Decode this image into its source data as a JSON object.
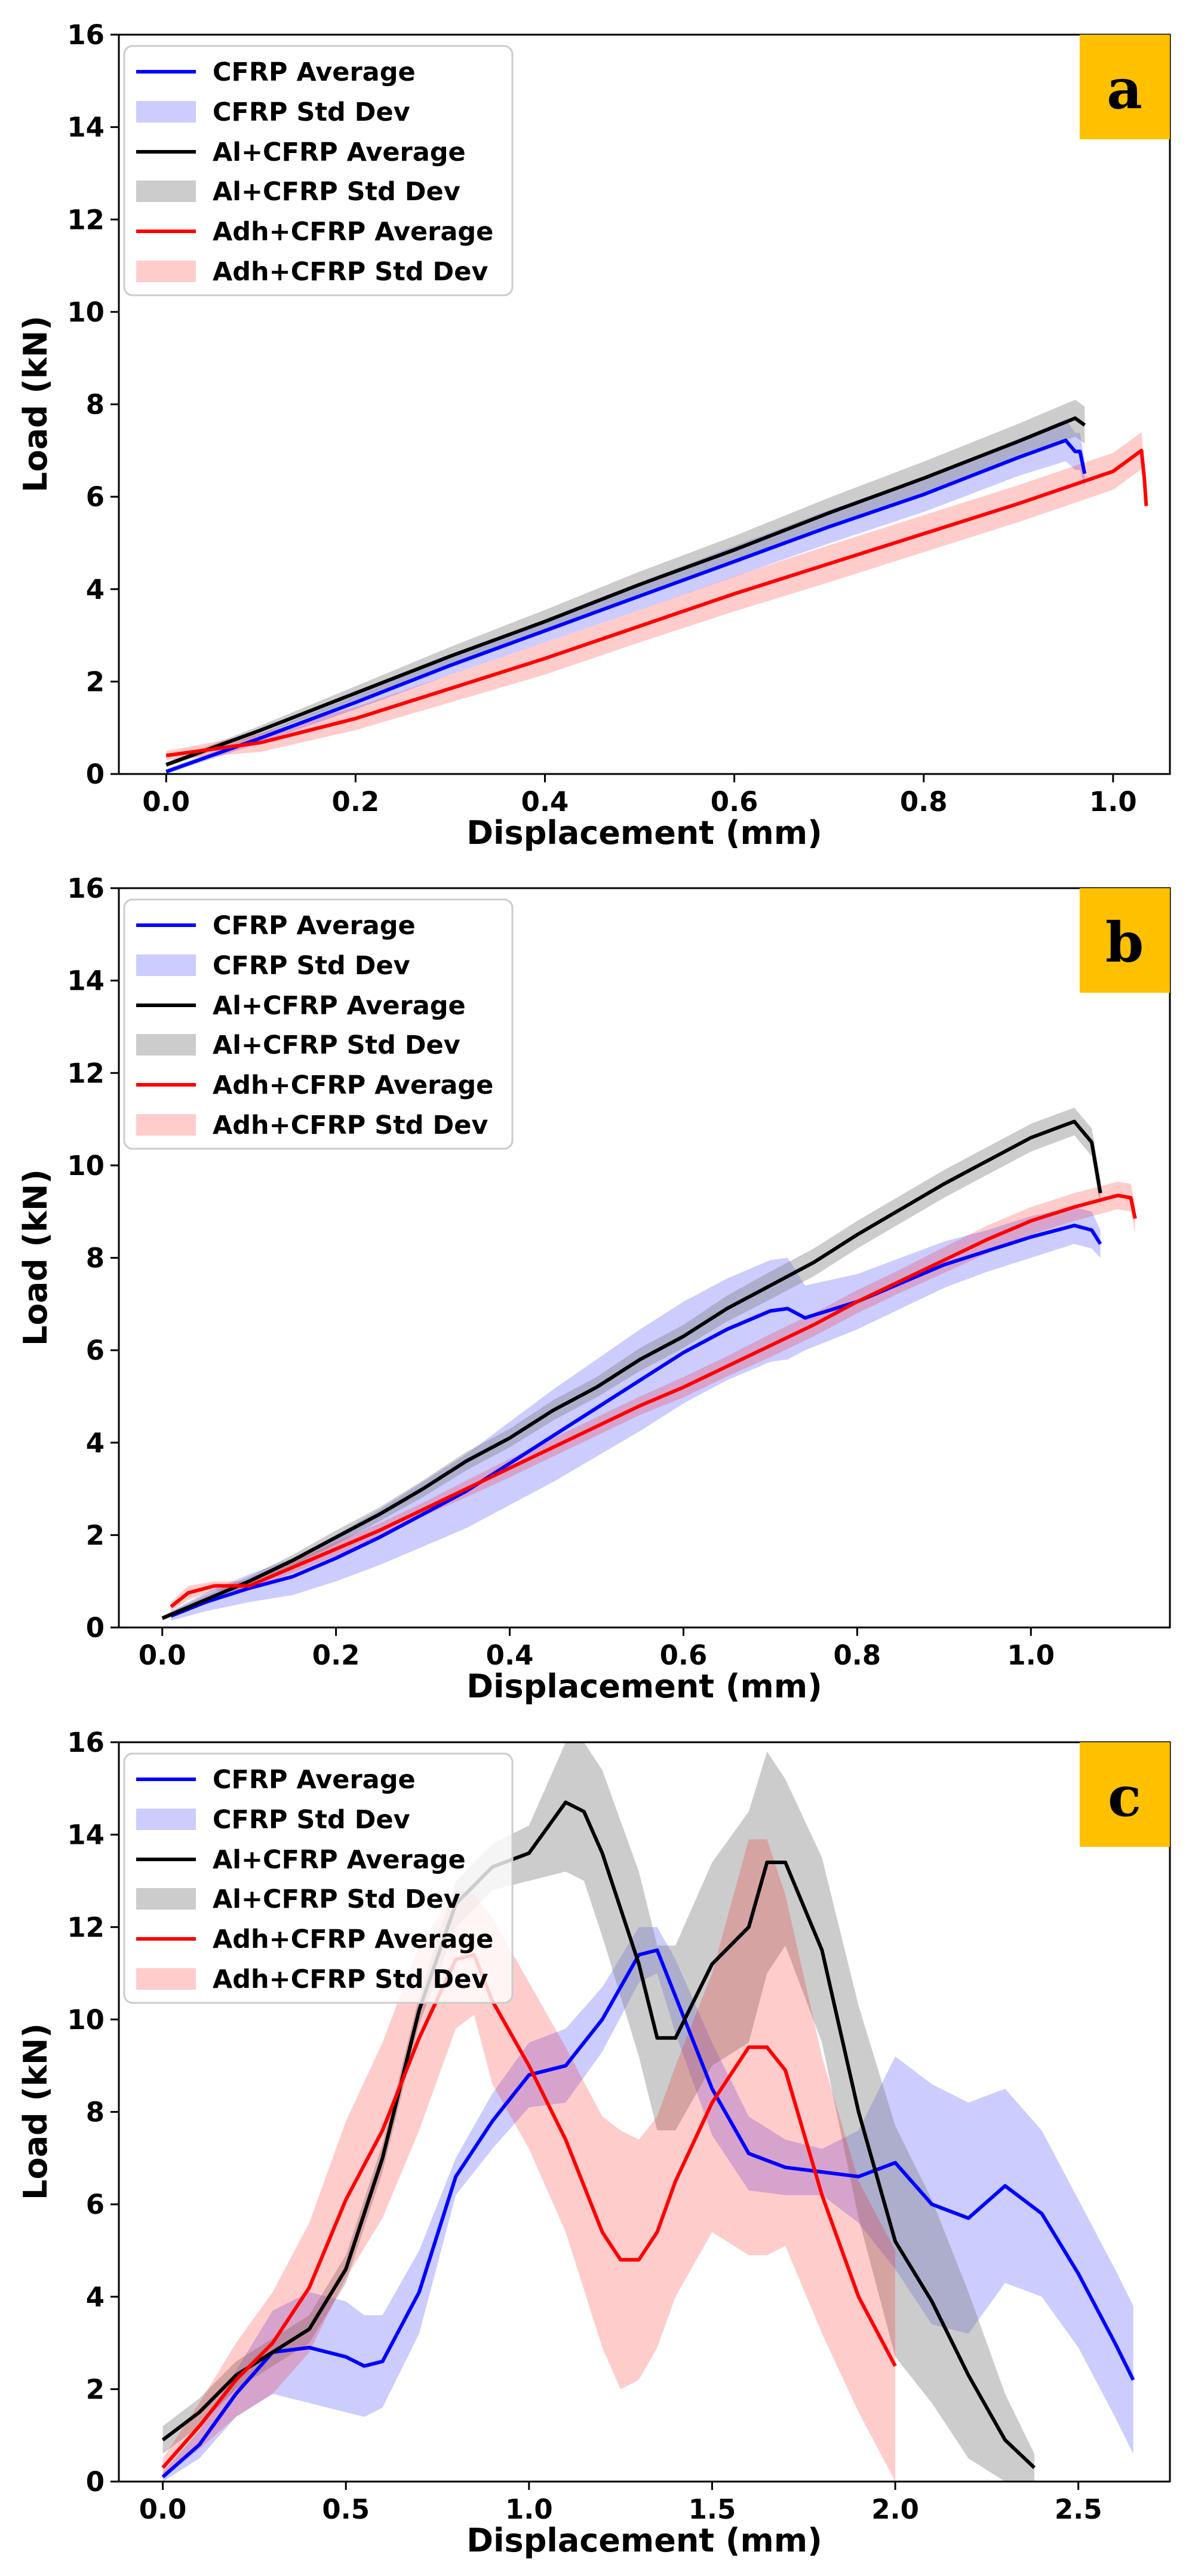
{
  "legend": [
    {
      "label": "CFRP Average",
      "kind": "line",
      "color": "#0000ff"
    },
    {
      "label": "CFRP Std Dev",
      "kind": "band",
      "color": "#0000ff"
    },
    {
      "label": "Al+CFRP Average",
      "kind": "line",
      "color": "#000000"
    },
    {
      "label": "Al+CFRP Std Dev",
      "kind": "band",
      "color": "#808080"
    },
    {
      "label": "Adh+CFRP Average",
      "kind": "line",
      "color": "#ff0000"
    },
    {
      "label": "Adh+CFRP Std Dev",
      "kind": "band",
      "color": "#ff0000"
    }
  ],
  "badge_color": "#ffc000",
  "chart_data": [
    {
      "panel": "a",
      "type": "line",
      "xlabel": "Displacement (mm)",
      "ylabel": "Load (kN)",
      "xlim": [
        -0.05,
        1.06
      ],
      "ylim": [
        0,
        16
      ],
      "xticks": [
        0.0,
        0.2,
        0.4,
        0.6,
        0.8,
        1.0
      ],
      "xtick_labels": [
        "0.0",
        "0.2",
        "0.4",
        "0.6",
        "0.8",
        "1.0"
      ],
      "yticks": [
        0,
        2,
        4,
        6,
        8,
        10,
        12,
        14,
        16
      ],
      "ytick_labels": [
        "0",
        "2",
        "4",
        "6",
        "8",
        "10",
        "12",
        "14",
        "16"
      ],
      "legend_position": "upper-left",
      "series": [
        {
          "name": "CFRP",
          "color": "#0000ff",
          "band_color": "#0000ff",
          "x": [
            0.0,
            0.1,
            0.2,
            0.3,
            0.4,
            0.5,
            0.6,
            0.7,
            0.8,
            0.9,
            0.95,
            0.96,
            0.965,
            0.97
          ],
          "y": [
            0.05,
            0.78,
            1.55,
            2.35,
            3.1,
            3.85,
            4.6,
            5.35,
            6.05,
            6.85,
            7.22,
            6.98,
            6.98,
            6.5
          ],
          "std": [
            0.05,
            0.1,
            0.15,
            0.2,
            0.25,
            0.3,
            0.33,
            0.36,
            0.38,
            0.4,
            0.45,
            0.4,
            0.4,
            0.3
          ]
        },
        {
          "name": "Al+CFRP",
          "color": "#000000",
          "band_color": "#808080",
          "x": [
            0.0,
            0.1,
            0.2,
            0.3,
            0.4,
            0.5,
            0.6,
            0.7,
            0.8,
            0.9,
            0.96,
            0.97
          ],
          "y": [
            0.2,
            0.95,
            1.75,
            2.55,
            3.3,
            4.1,
            4.85,
            5.65,
            6.4,
            7.2,
            7.7,
            7.55
          ],
          "std": [
            0.05,
            0.1,
            0.15,
            0.2,
            0.25,
            0.28,
            0.3,
            0.33,
            0.36,
            0.38,
            0.4,
            0.4
          ]
        },
        {
          "name": "Adh+CFRP",
          "color": "#ff0000",
          "band_color": "#ff0000",
          "x": [
            0.0,
            0.1,
            0.2,
            0.3,
            0.4,
            0.5,
            0.6,
            0.7,
            0.8,
            0.9,
            1.0,
            1.03,
            1.033,
            1.035
          ],
          "y": [
            0.4,
            0.68,
            1.2,
            1.85,
            2.5,
            3.2,
            3.9,
            4.55,
            5.2,
            5.85,
            6.55,
            7.0,
            6.4,
            5.8
          ],
          "std": [
            0.1,
            0.2,
            0.25,
            0.3,
            0.35,
            0.35,
            0.38,
            0.4,
            0.4,
            0.4,
            0.4,
            0.4,
            0.3,
            0.1
          ]
        }
      ]
    },
    {
      "panel": "b",
      "type": "line",
      "xlabel": "Displacement (mm)",
      "ylabel": "Load (kN)",
      "xlim": [
        -0.05,
        1.16
      ],
      "ylim": [
        0,
        16
      ],
      "xticks": [
        0.0,
        0.2,
        0.4,
        0.6,
        0.8,
        1.0
      ],
      "xtick_labels": [
        "0.0",
        "0.2",
        "0.4",
        "0.6",
        "0.8",
        "1.0"
      ],
      "yticks": [
        0,
        2,
        4,
        6,
        8,
        10,
        12,
        14,
        16
      ],
      "ytick_labels": [
        "0",
        "2",
        "4",
        "6",
        "8",
        "10",
        "12",
        "14",
        "16"
      ],
      "legend_position": "upper-left",
      "series": [
        {
          "name": "CFRP",
          "color": "#0000ff",
          "band_color": "#0000ff",
          "x": [
            0.01,
            0.05,
            0.1,
            0.15,
            0.2,
            0.25,
            0.3,
            0.35,
            0.4,
            0.45,
            0.5,
            0.55,
            0.6,
            0.65,
            0.7,
            0.72,
            0.74,
            0.8,
            0.85,
            0.9,
            0.95,
            1.0,
            1.05,
            1.07,
            1.08
          ],
          "y": [
            0.25,
            0.55,
            0.85,
            1.1,
            1.5,
            1.95,
            2.45,
            2.95,
            3.55,
            4.15,
            4.75,
            5.35,
            5.95,
            6.45,
            6.85,
            6.9,
            6.7,
            7.05,
            7.45,
            7.85,
            8.15,
            8.45,
            8.7,
            8.6,
            8.3
          ],
          "std": [
            0.1,
            0.2,
            0.3,
            0.4,
            0.5,
            0.6,
            0.7,
            0.8,
            0.9,
            1.0,
            1.05,
            1.1,
            1.1,
            1.1,
            1.1,
            1.1,
            0.7,
            0.6,
            0.55,
            0.5,
            0.45,
            0.45,
            0.4,
            0.4,
            0.3
          ]
        },
        {
          "name": "Al+CFRP",
          "color": "#000000",
          "band_color": "#808080",
          "x": [
            0.0,
            0.05,
            0.1,
            0.15,
            0.2,
            0.25,
            0.3,
            0.35,
            0.4,
            0.45,
            0.5,
            0.55,
            0.6,
            0.65,
            0.7,
            0.75,
            0.8,
            0.85,
            0.9,
            0.95,
            1.0,
            1.05,
            1.07,
            1.08
          ],
          "y": [
            0.2,
            0.6,
            1.0,
            1.45,
            1.95,
            2.45,
            3.0,
            3.6,
            4.1,
            4.7,
            5.2,
            5.8,
            6.3,
            6.9,
            7.4,
            7.9,
            8.5,
            9.05,
            9.6,
            10.1,
            10.6,
            10.95,
            10.5,
            9.4
          ],
          "std": [
            0.05,
            0.1,
            0.1,
            0.12,
            0.15,
            0.15,
            0.18,
            0.2,
            0.2,
            0.22,
            0.22,
            0.25,
            0.25,
            0.28,
            0.3,
            0.3,
            0.3,
            0.3,
            0.3,
            0.3,
            0.3,
            0.3,
            0.3,
            0.3
          ]
        },
        {
          "name": "Adh+CFRP",
          "color": "#ff0000",
          "band_color": "#ff0000",
          "x": [
            0.01,
            0.03,
            0.06,
            0.1,
            0.15,
            0.2,
            0.25,
            0.3,
            0.35,
            0.4,
            0.45,
            0.5,
            0.55,
            0.6,
            0.65,
            0.7,
            0.75,
            0.8,
            0.85,
            0.9,
            0.95,
            1.0,
            1.05,
            1.1,
            1.115,
            1.12
          ],
          "y": [
            0.45,
            0.75,
            0.9,
            0.9,
            1.3,
            1.7,
            2.1,
            2.55,
            3.0,
            3.45,
            3.9,
            4.35,
            4.8,
            5.2,
            5.65,
            6.1,
            6.55,
            7.05,
            7.5,
            7.95,
            8.4,
            8.8,
            9.1,
            9.35,
            9.3,
            8.85
          ],
          "std": [
            0.1,
            0.15,
            0.1,
            0.1,
            0.12,
            0.15,
            0.15,
            0.15,
            0.18,
            0.2,
            0.2,
            0.2,
            0.2,
            0.22,
            0.22,
            0.25,
            0.25,
            0.25,
            0.25,
            0.28,
            0.3,
            0.3,
            0.3,
            0.3,
            0.3,
            0.3
          ]
        }
      ]
    },
    {
      "panel": "c",
      "type": "line",
      "xlabel": "Displacement (mm)",
      "ylabel": "Load (kN)",
      "xlim": [
        -0.12,
        2.75
      ],
      "ylim": [
        0,
        16
      ],
      "xticks": [
        0.0,
        0.5,
        1.0,
        1.5,
        2.0,
        2.5
      ],
      "xtick_labels": [
        "0.0",
        "0.5",
        "1.0",
        "1.5",
        "2.0",
        "2.5"
      ],
      "yticks": [
        0,
        2,
        4,
        6,
        8,
        10,
        12,
        14,
        16
      ],
      "ytick_labels": [
        "0",
        "2",
        "4",
        "6",
        "8",
        "10",
        "12",
        "14",
        "16"
      ],
      "legend_position": "upper-left",
      "series": [
        {
          "name": "CFRP",
          "color": "#0000ff",
          "band_color": "#0000ff",
          "x": [
            0.0,
            0.1,
            0.2,
            0.3,
            0.4,
            0.5,
            0.55,
            0.6,
            0.7,
            0.8,
            0.9,
            1.0,
            1.1,
            1.2,
            1.3,
            1.35,
            1.4,
            1.5,
            1.6,
            1.7,
            1.8,
            1.9,
            2.0,
            2.1,
            2.2,
            2.3,
            2.4,
            2.5,
            2.6,
            2.65
          ],
          "y": [
            0.1,
            0.8,
            1.9,
            2.8,
            2.9,
            2.7,
            2.5,
            2.6,
            4.1,
            6.6,
            7.8,
            8.8,
            9.0,
            10.0,
            11.4,
            11.5,
            10.5,
            8.5,
            7.1,
            6.8,
            6.7,
            6.6,
            6.9,
            6.0,
            5.7,
            6.4,
            5.8,
            4.5,
            3.0,
            2.2
          ],
          "std": [
            0.1,
            0.3,
            0.5,
            0.9,
            1.2,
            1.2,
            1.1,
            1.0,
            0.9,
            0.4,
            0.6,
            0.7,
            0.8,
            0.7,
            0.6,
            0.5,
            0.8,
            1.0,
            0.8,
            0.6,
            0.5,
            1.0,
            2.3,
            2.6,
            2.5,
            2.1,
            1.8,
            1.6,
            1.6,
            1.6
          ]
        },
        {
          "name": "Al+CFRP",
          "color": "#000000",
          "band_color": "#808080",
          "x": [
            0.0,
            0.1,
            0.2,
            0.3,
            0.4,
            0.5,
            0.6,
            0.7,
            0.8,
            0.9,
            1.0,
            1.1,
            1.15,
            1.2,
            1.3,
            1.35,
            1.4,
            1.5,
            1.6,
            1.65,
            1.7,
            1.8,
            1.9,
            2.0,
            2.1,
            2.2,
            2.3,
            2.38
          ],
          "y": [
            0.9,
            1.5,
            2.3,
            2.8,
            3.3,
            4.6,
            7.0,
            10.2,
            12.5,
            13.3,
            13.6,
            14.7,
            14.5,
            13.6,
            11.2,
            9.6,
            9.6,
            11.2,
            12.0,
            13.4,
            13.4,
            11.5,
            8.0,
            5.2,
            3.9,
            2.3,
            0.9,
            0.3
          ],
          "std": [
            0.3,
            0.3,
            0.3,
            0.3,
            0.3,
            0.3,
            0.3,
            0.3,
            0.5,
            0.5,
            0.6,
            1.5,
            1.5,
            1.8,
            2.0,
            2.0,
            2.0,
            2.2,
            2.5,
            2.4,
            1.8,
            2.0,
            2.3,
            2.5,
            2.2,
            1.8,
            1.0,
            0.3
          ]
        },
        {
          "name": "Adh+CFRP",
          "color": "#ff0000",
          "band_color": "#ff0000",
          "x": [
            0.0,
            0.1,
            0.2,
            0.3,
            0.4,
            0.5,
            0.6,
            0.7,
            0.8,
            0.85,
            0.9,
            1.0,
            1.1,
            1.2,
            1.25,
            1.3,
            1.35,
            1.4,
            1.5,
            1.6,
            1.65,
            1.7,
            1.8,
            1.9,
            2.0
          ],
          "y": [
            0.3,
            1.2,
            2.2,
            3.0,
            4.2,
            6.1,
            7.6,
            9.6,
            11.3,
            11.4,
            10.4,
            9.0,
            7.4,
            5.4,
            4.8,
            4.8,
            5.4,
            6.5,
            8.2,
            9.4,
            9.4,
            8.9,
            6.2,
            4.0,
            2.5
          ],
          "std": [
            0.2,
            0.5,
            0.8,
            1.1,
            1.4,
            1.7,
            1.9,
            2.0,
            1.5,
            1.3,
            1.8,
            1.8,
            2.0,
            2.5,
            2.8,
            2.6,
            2.5,
            2.5,
            2.8,
            4.5,
            4.5,
            3.8,
            3.0,
            2.5,
            2.5
          ]
        }
      ]
    }
  ]
}
